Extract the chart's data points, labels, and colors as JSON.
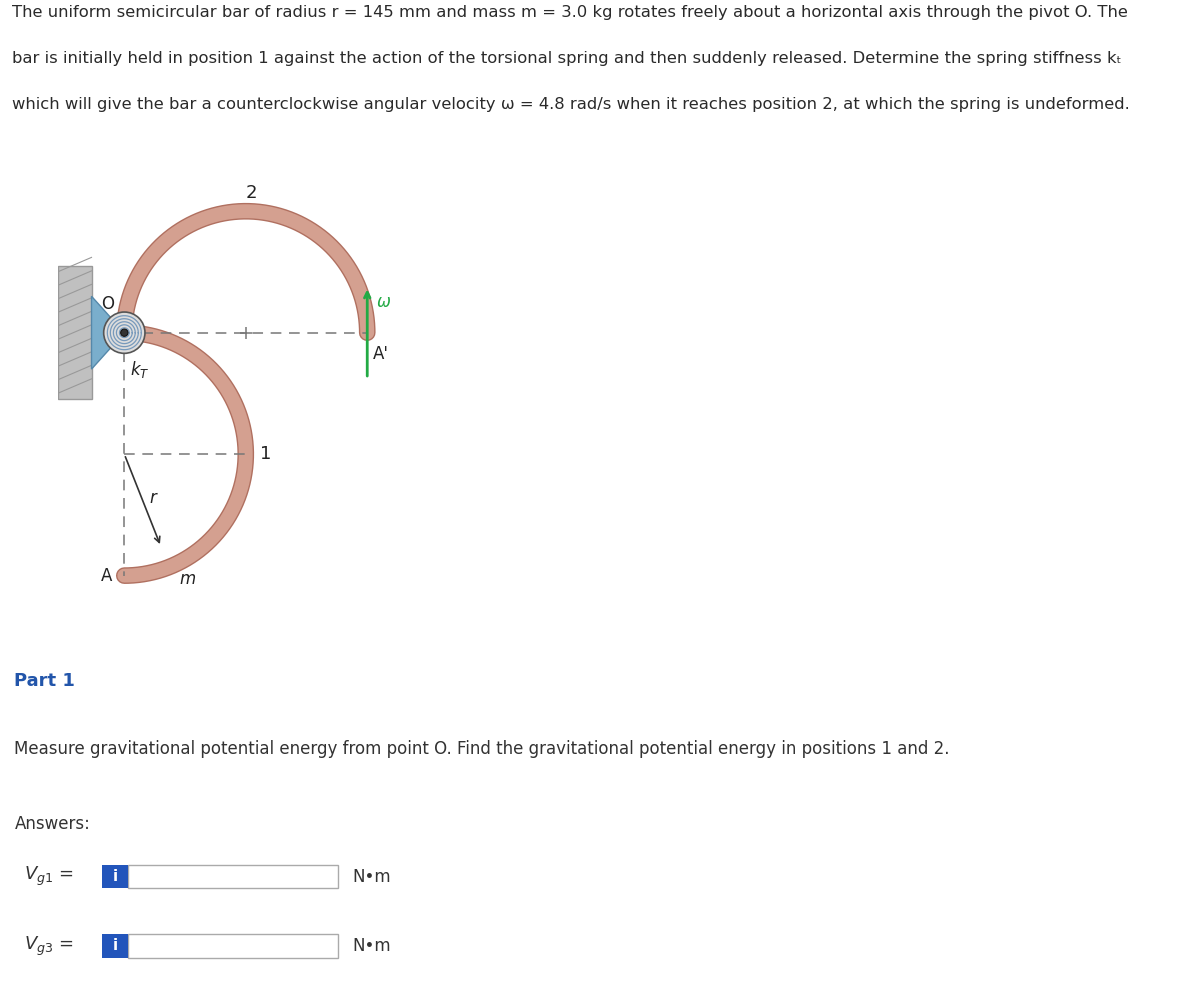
{
  "bg_color": "#ffffff",
  "fig_width": 12.0,
  "fig_height": 9.96,
  "bar_color": "#D4A090",
  "bar_edge_color": "#B07060",
  "bar_lw": 10,
  "part1_label": "Part 1",
  "part1_color": "#2255AA",
  "part1_fontsize": 13,
  "part1_bg": "#E8E8E8",
  "measure_text": "Measure gravitational potential energy from point O. Find the gravitational potential energy in positions 1 and 2.",
  "answers_text": "Answers:",
  "unit_label": "N•m",
  "info_button_color": "#2255BB",
  "dashed_color": "#777777",
  "omega_color": "#22AA44",
  "wall_color": "#999999",
  "wall_fill": "#C0C0C0",
  "bracket_color": "#7AAECC",
  "title_fontsize": 11.8,
  "title_color": "#2a2a2a"
}
